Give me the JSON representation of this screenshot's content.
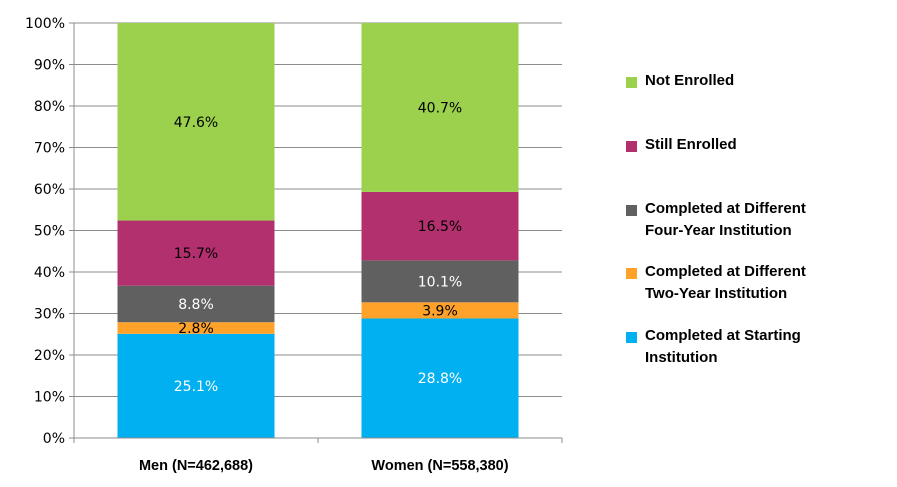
{
  "chart_data": {
    "type": "stacked-bar-100",
    "categories": [
      "Men (N=462,688)",
      "Women (N=558,380)"
    ],
    "series": [
      {
        "name": "Completed at Starting Institution",
        "color": "#00b0f0",
        "label_color": "#ffffff",
        "values": [
          25.1,
          28.8
        ],
        "labels": [
          "25.1%",
          "28.8%"
        ]
      },
      {
        "name": "Completed at Different Two-Year Institution",
        "color": "#ffa22a",
        "label_color": "#000000",
        "values": [
          2.8,
          3.9
        ],
        "labels": [
          "2.8%",
          "3.9%"
        ]
      },
      {
        "name": "Completed at Different Four-Year Institution",
        "color": "#606060",
        "label_color": "#ffffff",
        "values": [
          8.8,
          10.1
        ],
        "labels": [
          "8.8%",
          "10.1%"
        ]
      },
      {
        "name": "Still Enrolled",
        "color": "#b2306e",
        "label_color": "#000000",
        "values": [
          15.7,
          16.5
        ],
        "labels": [
          "15.7%",
          "16.5%"
        ]
      },
      {
        "name": "Not Enrolled",
        "color": "#9bd14c",
        "label_color": "#000000",
        "values": [
          47.6,
          40.7
        ],
        "labels": [
          "47.6%",
          "40.7%"
        ]
      }
    ],
    "yticks": [
      "0%",
      "10%",
      "20%",
      "30%",
      "40%",
      "50%",
      "60%",
      "70%",
      "80%",
      "90%",
      "100%"
    ],
    "ylim": [
      0,
      100
    ],
    "grid": true,
    "legend_position": "right",
    "legend": [
      {
        "line1": "Not Enrolled",
        "line2": "",
        "color": "#9bd14c"
      },
      {
        "line1": "Still Enrolled",
        "line2": "",
        "color": "#b2306e"
      },
      {
        "line1": "Completed at Different",
        "line2": "Four-Year Institution",
        "color": "#606060"
      },
      {
        "line1": "Completed at Different",
        "line2": "Two-Year Institution",
        "color": "#ffa22a"
      },
      {
        "line1": "Completed at Starting",
        "line2": "Institution",
        "color": "#00b0f0"
      }
    ]
  }
}
